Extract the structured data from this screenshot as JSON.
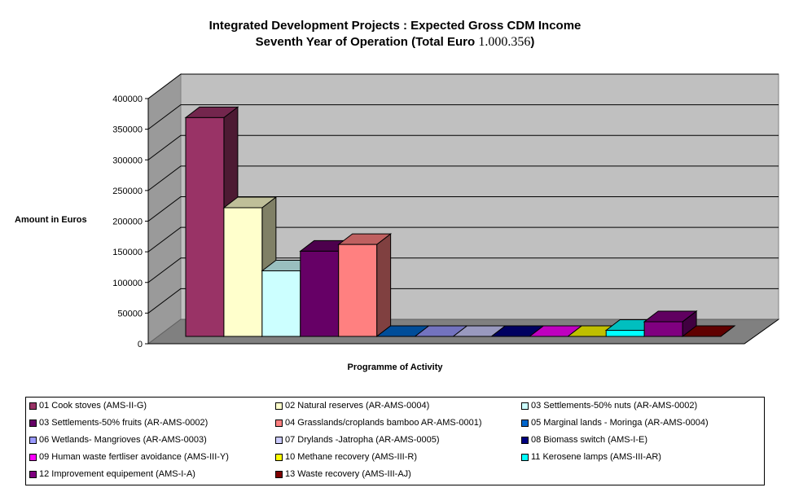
{
  "chart_data": {
    "type": "bar",
    "title": "Integrated Development Projects : Expected Gross CDM Income",
    "subtitle_prefix": "Seventh Year of Operation (Total Euro ",
    "subtitle_number": "1.000.356",
    "subtitle_suffix": ")",
    "xlabel": "Programme of Activity",
    "ylabel": "Amount in Euros",
    "ylim": [
      0,
      400000
    ],
    "yticks": [
      "0",
      "50000",
      "100000",
      "150000",
      "200000",
      "250000",
      "300000",
      "350000",
      "400000"
    ],
    "grid": true,
    "legend_position": "bottom",
    "categories": [
      "01 Cook stoves (AMS-II-G)",
      "02 Natural reserves (AR-AMS-0004)",
      "03 Settlements-50% nuts (AR-AMS-0002)",
      "03 Settlements-50% fruits (AR-AMS-0002)",
      "04 Grasslands/croplands bamboo AR-AMS-0001)",
      "05 Marginal lands - Moringa (AR-AMS-0004)",
      "06 Wetlands- Mangrioves (AR-AMS-0003)",
      "07 Drylands -Jatropha (AR-AMS-0005)",
      "08 Biomass switch (AMS-I-E)",
      "09 Human waste fertliser avoidance (AMS-III-Y)",
      "10 Methane recovery (AMS-III-R)",
      "11 Kerosene lamps (AMS-III-AR)",
      "12 Improvement equipement (AMS-I-A)",
      "13 Waste recovery (AMS-III-AJ)"
    ],
    "values": [
      357000,
      210000,
      107000,
      139000,
      150000,
      0,
      0,
      0,
      0,
      0,
      0,
      10000,
      24000,
      0
    ],
    "colors": [
      "#993366",
      "#ffffcc",
      "#ccffff",
      "#660066",
      "#ff8080",
      "#0066cc",
      "#9999ff",
      "#ccccff",
      "#000080",
      "#ff00ff",
      "#ffff00",
      "#00ffff",
      "#800080",
      "#800000"
    ]
  }
}
